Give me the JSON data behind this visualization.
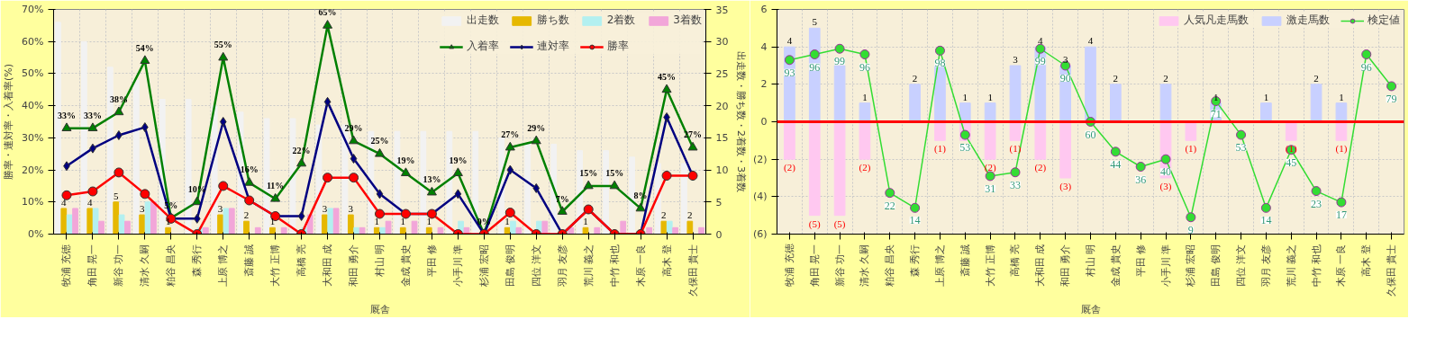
{
  "chart_data": [
    {
      "type": "bar",
      "xlabel": "厩舎",
      "ylabel": "勝率・連対率・入着率(%)",
      "y2label": "出走数・勝ち数・2着数・3着数",
      "categories": [
        "牧浦 充徳",
        "角田 晃一",
        "新谷 功一",
        "清水 久嗣",
        "粕谷 昌央",
        "森 秀行",
        "上原 博之",
        "斎藤 誠",
        "大竹 正博",
        "高橋 亮",
        "大和田 成",
        "和田 勇介",
        "村山 明",
        "金成 貴史",
        "平田 修",
        "小手川 準",
        "杉浦 宏昭",
        "田島 俊明",
        "四位 洋文",
        "羽月 友彦",
        "荒川 義之",
        "中竹 和也",
        "木原 一良",
        "高木 登",
        "久保田 貴士"
      ],
      "ylim": [
        0,
        70
      ],
      "yticks": [
        {
          "value": 0,
          "label": "0%"
        },
        {
          "value": 10,
          "label": "10%"
        },
        {
          "value": 20,
          "label": "20%"
        },
        {
          "value": 30,
          "label": "30%"
        },
        {
          "value": 40,
          "label": "40%"
        },
        {
          "value": 50,
          "label": "50%"
        },
        {
          "value": 60,
          "label": "60%"
        },
        {
          "value": 70,
          "label": "70%"
        }
      ],
      "y2lim": [
        0,
        35
      ],
      "y2ticks": [
        0,
        5,
        10,
        15,
        20,
        25,
        30,
        35
      ],
      "grid": true,
      "legend": "top",
      "series": [
        {
          "name": "出走数",
          "color": "#f2f2f2",
          "axis": "y2",
          "values": [
            33,
            30,
            26,
            24,
            21,
            21,
            20,
            19,
            18,
            18,
            17,
            17,
            16,
            16,
            16,
            16,
            16,
            15,
            14,
            14,
            13,
            13,
            12,
            11,
            11
          ]
        },
        {
          "name": "勝ち数",
          "color": "#e6b800",
          "axis": "y2",
          "values": [
            4,
            4,
            5,
            3,
            1,
            0,
            3,
            2,
            1,
            0,
            3,
            3,
            1,
            1,
            1,
            0,
            0,
            1,
            0,
            0,
            1,
            0,
            0,
            2,
            2
          ],
          "value_labels": [
            "4",
            "4",
            "5",
            "3",
            "1",
            null,
            "3",
            "2",
            "1",
            null,
            "3",
            "3",
            "1",
            "1",
            "1",
            null,
            null,
            "1",
            null,
            null,
            "1",
            null,
            null,
            "2",
            "2"
          ]
        },
        {
          "name": "2着数",
          "color": "#b3f0f0",
          "axis": "y2",
          "values": [
            3,
            4,
            3,
            5,
            0,
            1,
            4,
            0,
            0,
            1,
            4,
            1,
            1,
            0,
            0,
            2,
            0,
            2,
            2,
            0,
            0,
            0,
            0,
            2,
            0
          ]
        },
        {
          "name": "3着数",
          "color": "#f2a6d9",
          "axis": "y2",
          "values": [
            4,
            2,
            2,
            5,
            0,
            1,
            4,
            1,
            1,
            3,
            4,
            1,
            2,
            2,
            1,
            1,
            0,
            1,
            2,
            1,
            1,
            2,
            1,
            1,
            1
          ]
        },
        {
          "name": "入着率",
          "type": "line",
          "color": "#008000",
          "marker": "triangle",
          "values": [
            33,
            33,
            38,
            54,
            5,
            10,
            55,
            16,
            11,
            22,
            65,
            29,
            25,
            19,
            13,
            19,
            0,
            27,
            29,
            7,
            15,
            15,
            8,
            45,
            27
          ],
          "value_labels": [
            "33%",
            "33%",
            "38%",
            "54%",
            "5%",
            "10%",
            "55%",
            "16%",
            "11%",
            "22%",
            "65%",
            "29%",
            "25%",
            "19%",
            "13%",
            "19%",
            "0%",
            "27%",
            "29%",
            "7%",
            "15%",
            "15%",
            "8%",
            "45%",
            "27%"
          ]
        },
        {
          "name": "連対率",
          "type": "line",
          "color": "#000080",
          "marker": "diamond",
          "values": [
            21.2,
            26.7,
            30.8,
            33.3,
            4.8,
            4.8,
            35.0,
            10.5,
            5.6,
            5.6,
            41.2,
            23.5,
            12.5,
            6.3,
            6.3,
            12.5,
            0,
            20.0,
            14.3,
            0,
            7.7,
            0,
            0,
            36.4,
            18.2
          ]
        },
        {
          "name": "勝率",
          "type": "line",
          "color": "#ff0000",
          "marker": "circle",
          "values": [
            12.1,
            13.3,
            19.2,
            12.5,
            4.8,
            0,
            15.0,
            10.5,
            5.6,
            0,
            17.6,
            17.6,
            6.3,
            6.3,
            6.3,
            0,
            0,
            6.7,
            0,
            0,
            7.7,
            0,
            0,
            18.2,
            18.2
          ]
        }
      ]
    },
    {
      "type": "bar",
      "xlabel": "厩舎",
      "stacked": true,
      "categories": [
        "牧浦 充徳",
        "角田 晃一",
        "新谷 功一",
        "清水 久嗣",
        "粕谷 昌央",
        "森 秀行",
        "上原 博之",
        "斎藤 誠",
        "大竹 正博",
        "高橋 亮",
        "大和田 成",
        "和田 勇介",
        "村山 明",
        "金成 貴史",
        "平田 修",
        "小手川 準",
        "杉浦 宏昭",
        "田島 俊明",
        "四位 洋文",
        "羽月 友彦",
        "荒川 義之",
        "中竹 和也",
        "木原 一良",
        "高木 登",
        "久保田 貴士"
      ],
      "ylim": [
        -6,
        6
      ],
      "yticks": [
        6,
        4,
        2,
        0,
        {
          "value": -2,
          "label": "(2)"
        },
        {
          "value": -4,
          "label": "(4)"
        },
        {
          "value": -6,
          "label": "(6)"
        }
      ],
      "y2lim": [
        0,
        120
      ],
      "grid": true,
      "legend": "top",
      "ref_lines": [
        {
          "axis": "y",
          "value": 0,
          "color": "#ff0000"
        }
      ],
      "series": [
        {
          "name": "人気凡走馬数",
          "color": "#ffc8f0",
          "values": [
            -2,
            -5,
            -5,
            -2,
            0,
            0,
            -1,
            -1,
            -2,
            -1,
            -2,
            -3,
            0,
            0,
            0,
            -3,
            -1,
            0,
            0,
            0,
            -1,
            0,
            -1,
            0,
            0
          ],
          "value_labels": [
            "(2)",
            "(5)",
            "(5)",
            "(2)",
            null,
            null,
            "(1)",
            null,
            "(2)",
            "(1)",
            "(2)",
            "(3)",
            null,
            null,
            null,
            "(3)",
            "(1)",
            null,
            null,
            null,
            "(1)",
            null,
            "(1)",
            null,
            null
          ]
        },
        {
          "name": "激走馬数",
          "color": "#c8d0ff",
          "values": [
            4,
            5,
            3,
            1,
            0,
            2,
            3,
            1,
            1,
            3,
            4,
            3,
            4,
            2,
            0,
            2,
            0,
            1,
            0,
            1,
            0,
            2,
            1,
            0,
            0
          ],
          "value_labels": [
            "4",
            "5",
            null,
            "1",
            null,
            "2",
            null,
            "1",
            "1",
            "3",
            "4",
            "3",
            "4",
            "2",
            null,
            "2",
            null,
            "1",
            null,
            "1",
            null,
            "2",
            "1",
            null,
            null
          ]
        },
        {
          "name": "検定値",
          "type": "line",
          "axis": "y2",
          "color": "#33dd33",
          "marker": "circle",
          "values": [
            93,
            96,
            99,
            96,
            22,
            14,
            98,
            53,
            31,
            33,
            99,
            90,
            60,
            44,
            36,
            40,
            9,
            71,
            53,
            14,
            45,
            23,
            17,
            96,
            79
          ],
          "value_labels": [
            "93",
            "96",
            "99",
            "96",
            "22",
            "14",
            "98",
            "53",
            "31",
            "33",
            "99",
            "90",
            "60",
            "44",
            "36",
            "40",
            "9",
            "71",
            "53",
            "14",
            "45",
            "23",
            "17",
            "96",
            "79"
          ]
        }
      ]
    }
  ]
}
